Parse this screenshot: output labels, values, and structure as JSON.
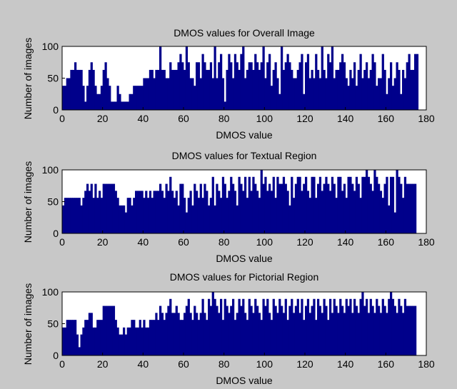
{
  "figure": {
    "background": "#c8c8c8",
    "bar_color": "#00008b"
  },
  "chart_data": [
    {
      "type": "bar",
      "title": "DMOS values for Overall Image",
      "xlabel": "DMOS value",
      "ylabel": "Number of images",
      "xlim": [
        0,
        180
      ],
      "ylim": [
        0,
        100
      ],
      "xticks": [
        0,
        20,
        40,
        60,
        80,
        100,
        120,
        140,
        160,
        180
      ],
      "yticks": [
        0,
        50,
        100
      ],
      "grid": false,
      "x_start": 0,
      "bin_width": 1,
      "values": [
        38,
        38,
        50,
        50,
        63,
        63,
        75,
        63,
        63,
        63,
        38,
        13,
        38,
        63,
        75,
        63,
        38,
        25,
        25,
        38,
        63,
        75,
        50,
        38,
        13,
        13,
        13,
        38,
        25,
        13,
        13,
        13,
        13,
        25,
        25,
        38,
        38,
        38,
        38,
        38,
        50,
        50,
        50,
        63,
        63,
        50,
        63,
        63,
        100,
        63,
        63,
        50,
        50,
        75,
        63,
        63,
        63,
        75,
        88,
        75,
        63,
        100,
        75,
        50,
        50,
        38,
        75,
        75,
        50,
        88,
        75,
        63,
        63,
        75,
        50,
        100,
        50,
        75,
        88,
        50,
        13,
        63,
        88,
        75,
        50,
        88,
        75,
        63,
        88,
        100,
        50,
        63,
        75,
        75,
        63,
        88,
        75,
        63,
        75,
        100,
        50,
        75,
        88,
        38,
        63,
        75,
        50,
        25,
        100,
        63,
        75,
        88,
        75,
        63,
        50,
        50,
        63,
        75,
        88,
        25,
        75,
        88,
        50,
        63,
        50,
        88,
        63,
        50,
        100,
        63,
        50,
        88,
        75,
        100,
        50,
        63,
        63,
        75,
        88,
        75,
        50,
        38,
        63,
        50,
        75,
        38,
        63,
        88,
        50,
        63,
        75,
        50,
        63,
        88,
        75,
        38,
        50,
        50,
        88,
        63,
        25,
        50,
        75,
        38,
        50,
        75,
        63,
        25,
        63,
        50,
        75,
        88,
        63,
        63,
        88,
        88
      ]
    },
    {
      "type": "bar",
      "title": "DMOS values for Textual Region",
      "xlabel": "DMOS value",
      "ylabel": "Number of images",
      "xlim": [
        0,
        180
      ],
      "ylim": [
        0,
        100
      ],
      "xticks": [
        0,
        20,
        40,
        60,
        80,
        100,
        120,
        140,
        160,
        180
      ],
      "yticks": [
        0,
        50,
        100
      ],
      "grid": false,
      "x_start": 0,
      "bin_width": 1,
      "values": [
        44,
        56,
        56,
        56,
        56,
        56,
        56,
        56,
        56,
        44,
        56,
        67,
        78,
        67,
        78,
        56,
        78,
        56,
        67,
        56,
        78,
        78,
        78,
        78,
        78,
        78,
        67,
        56,
        44,
        44,
        44,
        33,
        56,
        56,
        44,
        56,
        67,
        67,
        67,
        67,
        56,
        67,
        56,
        67,
        56,
        67,
        67,
        67,
        78,
        67,
        56,
        78,
        67,
        89,
        67,
        56,
        67,
        44,
        78,
        78,
        56,
        33,
        56,
        67,
        44,
        78,
        67,
        56,
        78,
        56,
        78,
        67,
        44,
        56,
        89,
        44,
        78,
        67,
        56,
        89,
        78,
        56,
        67,
        89,
        78,
        67,
        44,
        89,
        78,
        67,
        89,
        56,
        89,
        67,
        89,
        78,
        67,
        56,
        100,
        78,
        89,
        67,
        78,
        67,
        89,
        56,
        89,
        78,
        78,
        89,
        78,
        67,
        44,
        89,
        56,
        78,
        89,
        89,
        67,
        78,
        89,
        67,
        56,
        89,
        89,
        56,
        78,
        89,
        67,
        78,
        89,
        78,
        67,
        89,
        78,
        56,
        89,
        89,
        67,
        78,
        56,
        89,
        89,
        78,
        67,
        89,
        78,
        56,
        89,
        89,
        100,
        89,
        78,
        67,
        100,
        89,
        78,
        67,
        56,
        78,
        89,
        44,
        89,
        89,
        33,
        100,
        89,
        78,
        56,
        89,
        78,
        78,
        78,
        78,
        78
      ]
    },
    {
      "type": "bar",
      "title": "DMOS values for Pictorial Region",
      "xlabel": "DMOS value",
      "ylabel": "Number of images",
      "xlim": [
        0,
        180
      ],
      "ylim": [
        0,
        100
      ],
      "xticks": [
        0,
        20,
        40,
        60,
        80,
        100,
        120,
        140,
        160,
        180
      ],
      "yticks": [
        0,
        50,
        100
      ],
      "grid": false,
      "x_start": 0,
      "bin_width": 1,
      "values": [
        44,
        44,
        56,
        56,
        56,
        56,
        56,
        33,
        13,
        33,
        44,
        56,
        56,
        67,
        67,
        44,
        44,
        56,
        56,
        56,
        78,
        78,
        78,
        78,
        78,
        78,
        56,
        44,
        33,
        33,
        44,
        33,
        44,
        44,
        56,
        56,
        44,
        44,
        56,
        44,
        56,
        44,
        44,
        56,
        56,
        56,
        67,
        56,
        78,
        67,
        56,
        67,
        78,
        89,
        67,
        67,
        78,
        67,
        56,
        56,
        67,
        78,
        89,
        67,
        56,
        78,
        67,
        56,
        67,
        89,
        67,
        56,
        89,
        78,
        100,
        89,
        78,
        67,
        89,
        56,
        89,
        78,
        67,
        78,
        89,
        56,
        67,
        89,
        78,
        89,
        67,
        56,
        89,
        78,
        67,
        89,
        78,
        67,
        56,
        89,
        78,
        89,
        67,
        56,
        89,
        78,
        67,
        89,
        78,
        67,
        89,
        56,
        78,
        89,
        67,
        78,
        89,
        67,
        89,
        56,
        78,
        89,
        67,
        78,
        89,
        56,
        89,
        78,
        67,
        89,
        78,
        56,
        89,
        67,
        89,
        78,
        67,
        89,
        78,
        67,
        89,
        78,
        89,
        67,
        89,
        78,
        67,
        89,
        100,
        78,
        89,
        67,
        89,
        78,
        67,
        89,
        78,
        67,
        89,
        78,
        67,
        89,
        100,
        89,
        78,
        67,
        89,
        78,
        67,
        89,
        78,
        78,
        78,
        78,
        78
      ]
    }
  ]
}
